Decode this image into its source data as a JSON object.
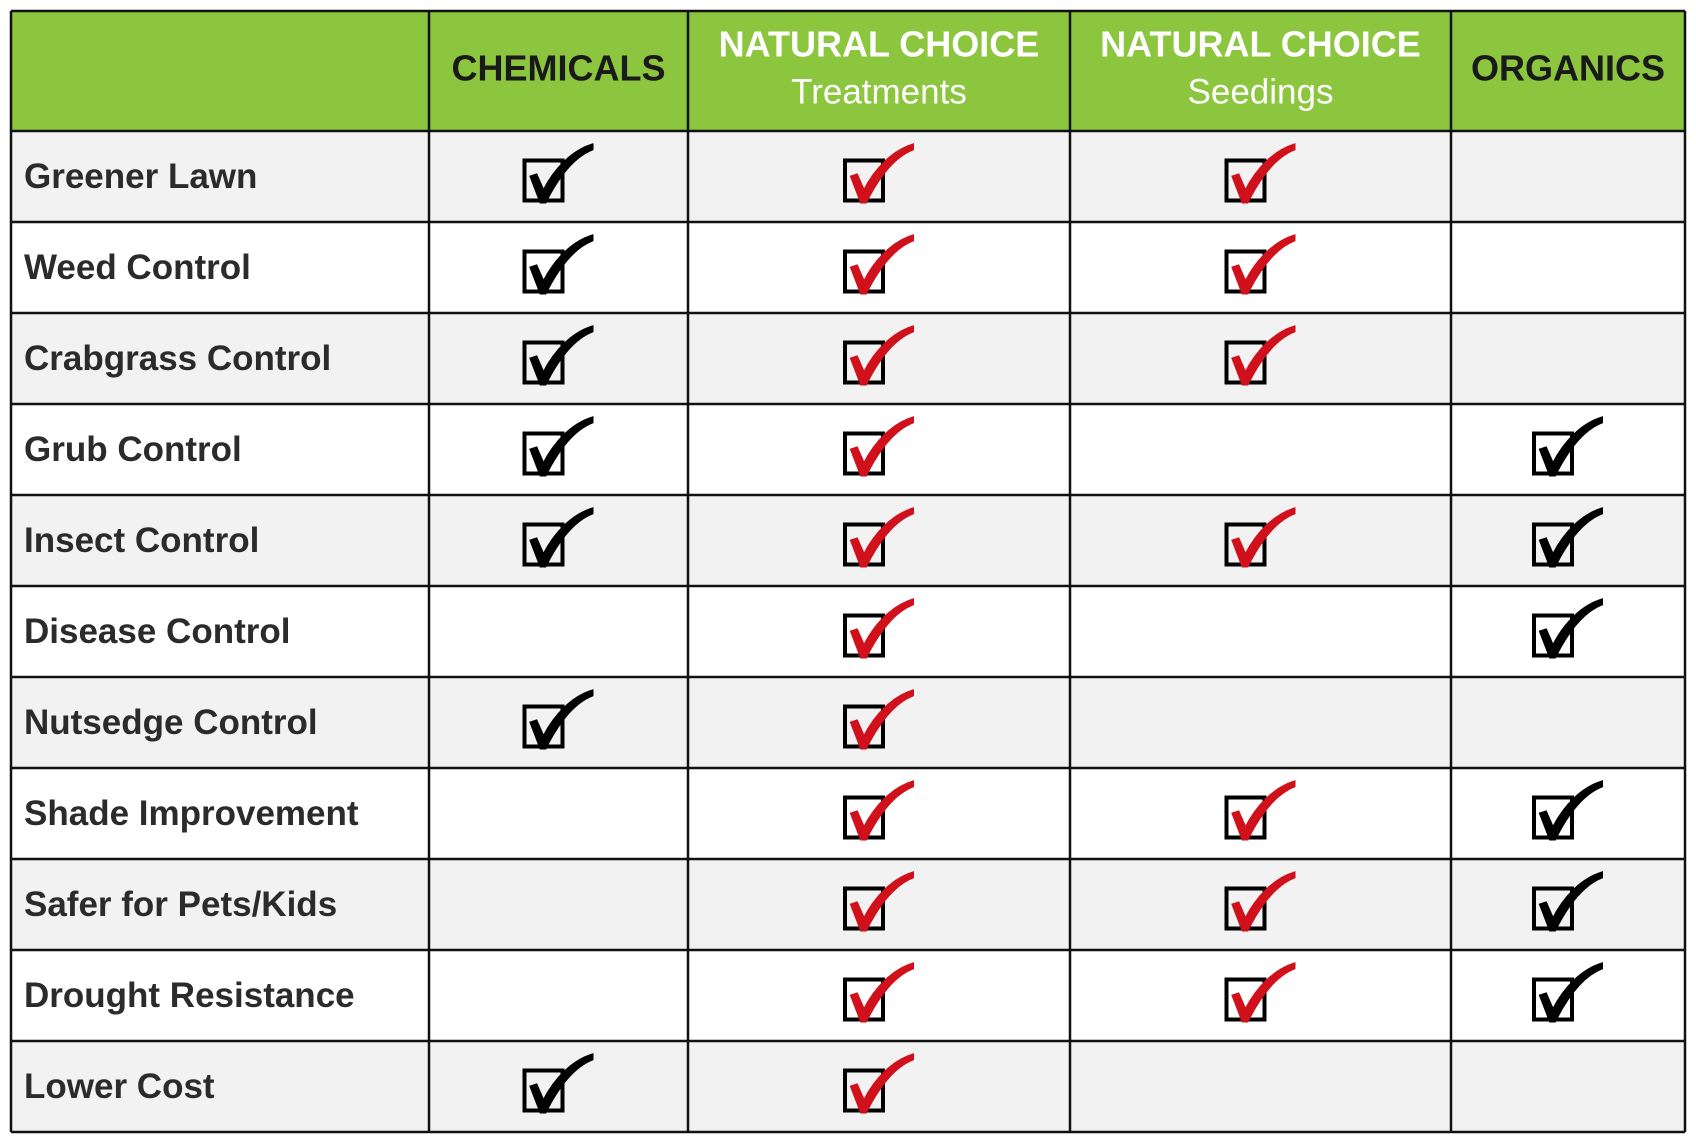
{
  "table": {
    "columns": [
      {
        "title": "CHEMICALS",
        "check_color": "#000000"
      },
      {
        "title": "NATURAL CHOICE",
        "subtitle": "Treatments",
        "check_color": "#d0101a"
      },
      {
        "title": "NATURAL CHOICE",
        "subtitle": "Seedings",
        "check_color": "#d0101a"
      },
      {
        "title": "ORGANICS",
        "check_color": "#000000"
      }
    ],
    "rows": [
      {
        "label": "Greener Lawn",
        "checks": [
          true,
          true,
          true,
          false
        ]
      },
      {
        "label": "Weed Control",
        "checks": [
          true,
          true,
          true,
          false
        ]
      },
      {
        "label": "Crabgrass Control",
        "checks": [
          true,
          true,
          true,
          false
        ]
      },
      {
        "label": "Grub Control",
        "checks": [
          true,
          true,
          false,
          true
        ]
      },
      {
        "label": "Insect Control",
        "checks": [
          true,
          true,
          true,
          true
        ]
      },
      {
        "label": "Disease Control",
        "checks": [
          false,
          true,
          false,
          true
        ]
      },
      {
        "label": "Nutsedge Control",
        "checks": [
          true,
          true,
          false,
          false
        ]
      },
      {
        "label": "Shade Improvement",
        "checks": [
          false,
          true,
          true,
          true
        ]
      },
      {
        "label": "Safer for Pets/Kids",
        "checks": [
          false,
          true,
          true,
          true
        ]
      },
      {
        "label": "Drought Resistance",
        "checks": [
          false,
          true,
          true,
          true
        ]
      },
      {
        "label": "Lower Cost",
        "checks": [
          true,
          true,
          false,
          false
        ]
      }
    ]
  }
}
